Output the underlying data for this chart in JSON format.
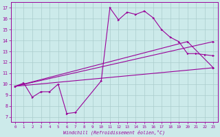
{
  "xlabel": "Windchill (Refroidissement éolien,°C)",
  "bg_color": "#cceaea",
  "line_color": "#990099",
  "grid_color": "#aacccc",
  "xlim": [
    -0.5,
    23.5
  ],
  "ylim": [
    6.5,
    17.5
  ],
  "yticks": [
    7,
    8,
    9,
    10,
    11,
    12,
    13,
    14,
    15,
    16,
    17
  ],
  "xticks": [
    0,
    1,
    2,
    3,
    4,
    5,
    6,
    7,
    8,
    9,
    10,
    11,
    12,
    13,
    14,
    15,
    16,
    17,
    18,
    19,
    20,
    21,
    22,
    23
  ],
  "line1_x": [
    0,
    1,
    2,
    3,
    4,
    5,
    6,
    7,
    10,
    11,
    12,
    13,
    14,
    15,
    16,
    17,
    18,
    19,
    20,
    21,
    22,
    23
  ],
  "line1_y": [
    9.8,
    10.1,
    8.8,
    9.3,
    9.3,
    10.0,
    7.3,
    7.4,
    10.3,
    17.0,
    15.9,
    16.6,
    16.4,
    16.7,
    16.1,
    15.0,
    14.3,
    13.9,
    12.8,
    12.8,
    12.7,
    12.6
  ],
  "line2_x": [
    0,
    23
  ],
  "line2_y": [
    9.8,
    11.5
  ],
  "line3_x": [
    0,
    23
  ],
  "line3_y": [
    9.8,
    13.9
  ],
  "line4_x": [
    0,
    20,
    23
  ],
  "line4_y": [
    9.8,
    13.9,
    11.5
  ]
}
